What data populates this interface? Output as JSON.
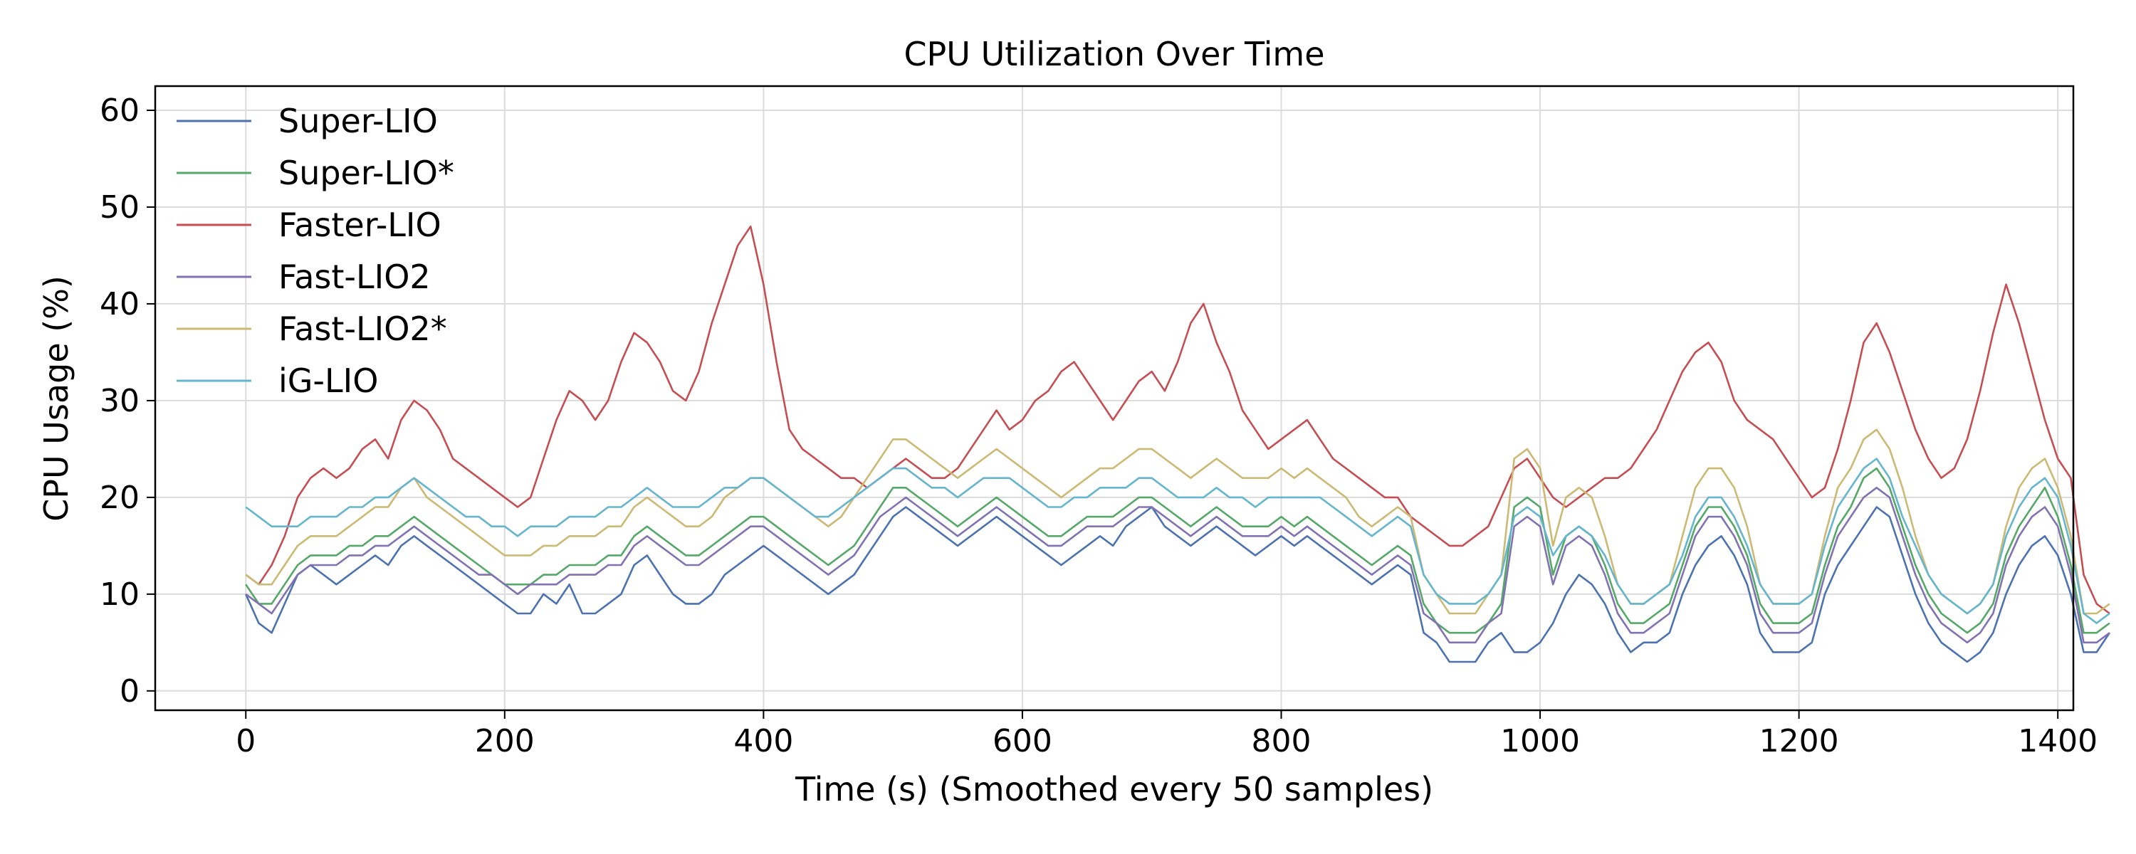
{
  "chart_data": {
    "type": "line",
    "title": "CPU Utilization Over Time",
    "xlabel": "Time (s) (Smoothed every 50 samples)",
    "ylabel": "CPU Usage (%)",
    "xlim": [
      -70,
      1412
    ],
    "ylim": [
      -2,
      62.5
    ],
    "xticks": [
      0,
      200,
      400,
      600,
      800,
      1000,
      1200,
      1400
    ],
    "yticks": [
      0,
      10,
      20,
      30,
      40,
      50,
      60
    ],
    "grid": true,
    "legend_position": "top-left",
    "x_step": 10,
    "series": [
      {
        "name": "Super-LIO",
        "color": "#4c72b0",
        "values": [
          10,
          7,
          6,
          9,
          12,
          13,
          12,
          11,
          12,
          13,
          14,
          13,
          15,
          16,
          15,
          14,
          13,
          12,
          11,
          10,
          9,
          8,
          8,
          10,
          9,
          11,
          8,
          8,
          9,
          10,
          13,
          14,
          12,
          10,
          9,
          9,
          10,
          12,
          13,
          14,
          15,
          14,
          13,
          12,
          11,
          10,
          11,
          12,
          14,
          16,
          18,
          19,
          18,
          17,
          16,
          15,
          16,
          17,
          18,
          17,
          16,
          15,
          14,
          13,
          14,
          15,
          16,
          15,
          17,
          18,
          19,
          17,
          16,
          15,
          16,
          17,
          16,
          15,
          14,
          15,
          16,
          15,
          16,
          15,
          14,
          13,
          12,
          11,
          12,
          13,
          12,
          6,
          5,
          3,
          3,
          3,
          5,
          6,
          4,
          4,
          5,
          7,
          10,
          12,
          11,
          9,
          6,
          4,
          5,
          5,
          6,
          10,
          13,
          15,
          16,
          14,
          11,
          6,
          4,
          4,
          4,
          5,
          10,
          13,
          15,
          17,
          19,
          18,
          14,
          10,
          7,
          5,
          4,
          3,
          4,
          6,
          10,
          13,
          15,
          16,
          14,
          10,
          4,
          4,
          6
        ]
      },
      {
        "name": "Super-LIO*",
        "color": "#55a868",
        "values": [
          11,
          9,
          9,
          11,
          13,
          14,
          14,
          14,
          15,
          15,
          16,
          16,
          17,
          18,
          17,
          16,
          15,
          14,
          13,
          12,
          11,
          11,
          11,
          12,
          12,
          13,
          13,
          13,
          14,
          14,
          16,
          17,
          16,
          15,
          14,
          14,
          15,
          16,
          17,
          18,
          18,
          17,
          16,
          15,
          14,
          13,
          14,
          15,
          17,
          19,
          21,
          21,
          20,
          19,
          18,
          17,
          18,
          19,
          20,
          19,
          18,
          17,
          16,
          16,
          17,
          18,
          18,
          18,
          19,
          20,
          20,
          19,
          18,
          17,
          18,
          19,
          18,
          17,
          17,
          17,
          18,
          17,
          18,
          17,
          16,
          15,
          14,
          13,
          14,
          15,
          14,
          9,
          7,
          6,
          6,
          6,
          7,
          9,
          19,
          20,
          19,
          12,
          16,
          17,
          16,
          13,
          9,
          7,
          7,
          8,
          9,
          13,
          17,
          19,
          19,
          17,
          14,
          9,
          7,
          7,
          7,
          8,
          13,
          17,
          19,
          22,
          23,
          21,
          17,
          13,
          10,
          8,
          7,
          6,
          7,
          9,
          14,
          17,
          19,
          21,
          18,
          13,
          6,
          6,
          7
        ]
      },
      {
        "name": "Faster-LIO",
        "color": "#c44e52",
        "values": [
          12,
          11,
          13,
          16,
          20,
          22,
          23,
          22,
          23,
          25,
          26,
          24,
          28,
          30,
          29,
          27,
          24,
          23,
          22,
          21,
          20,
          19,
          20,
          24,
          28,
          31,
          30,
          28,
          30,
          34,
          37,
          36,
          34,
          31,
          30,
          33,
          38,
          42,
          46,
          48,
          42,
          34,
          27,
          25,
          24,
          23,
          22,
          22,
          21,
          22,
          23,
          24,
          23,
          22,
          22,
          23,
          25,
          27,
          29,
          27,
          28,
          30,
          31,
          33,
          34,
          32,
          30,
          28,
          30,
          32,
          33,
          31,
          34,
          38,
          40,
          36,
          33,
          29,
          27,
          25,
          26,
          27,
          28,
          26,
          24,
          23,
          22,
          21,
          20,
          20,
          18,
          17,
          16,
          15,
          15,
          16,
          17,
          20,
          23,
          24,
          22,
          20,
          19,
          20,
          21,
          22,
          22,
          23,
          25,
          27,
          30,
          33,
          35,
          36,
          34,
          30,
          28,
          27,
          26,
          24,
          22,
          20,
          21,
          25,
          30,
          36,
          38,
          35,
          31,
          27,
          24,
          22,
          23,
          26,
          31,
          37,
          42,
          38,
          33,
          28,
          24,
          22,
          12,
          9,
          8
        ]
      },
      {
        "name": "Fast-LIO2",
        "color": "#8172b2",
        "values": [
          10,
          9,
          8,
          10,
          12,
          13,
          13,
          13,
          14,
          14,
          15,
          15,
          16,
          17,
          16,
          15,
          14,
          13,
          12,
          12,
          11,
          10,
          11,
          11,
          11,
          12,
          12,
          12,
          13,
          13,
          15,
          16,
          15,
          14,
          13,
          13,
          14,
          15,
          16,
          17,
          17,
          16,
          15,
          14,
          13,
          12,
          13,
          14,
          16,
          18,
          19,
          20,
          19,
          18,
          17,
          16,
          17,
          18,
          19,
          18,
          17,
          16,
          15,
          15,
          16,
          17,
          17,
          17,
          18,
          19,
          19,
          18,
          17,
          16,
          17,
          18,
          17,
          16,
          16,
          16,
          17,
          16,
          17,
          16,
          15,
          14,
          13,
          12,
          13,
          14,
          13,
          8,
          7,
          5,
          5,
          5,
          7,
          8,
          17,
          18,
          17,
          11,
          15,
          16,
          15,
          12,
          8,
          6,
          6,
          7,
          8,
          12,
          16,
          18,
          18,
          16,
          13,
          8,
          6,
          6,
          6,
          7,
          12,
          16,
          18,
          20,
          21,
          20,
          16,
          12,
          9,
          7,
          6,
          5,
          6,
          8,
          13,
          16,
          18,
          19,
          17,
          12,
          5,
          5,
          6
        ]
      },
      {
        "name": "Fast-LIO2*",
        "color": "#ccb974",
        "values": [
          12,
          11,
          11,
          13,
          15,
          16,
          16,
          16,
          17,
          18,
          19,
          19,
          21,
          22,
          20,
          19,
          18,
          17,
          16,
          15,
          14,
          14,
          14,
          15,
          15,
          16,
          16,
          16,
          17,
          17,
          19,
          20,
          19,
          18,
          17,
          17,
          18,
          20,
          21,
          22,
          22,
          21,
          20,
          19,
          18,
          17,
          18,
          20,
          22,
          24,
          26,
          26,
          25,
          24,
          23,
          22,
          23,
          24,
          25,
          24,
          23,
          22,
          21,
          20,
          21,
          22,
          23,
          23,
          24,
          25,
          25,
          24,
          23,
          22,
          23,
          24,
          23,
          22,
          22,
          22,
          23,
          22,
          23,
          22,
          21,
          20,
          18,
          17,
          18,
          19,
          18,
          12,
          10,
          8,
          8,
          8,
          10,
          12,
          24,
          25,
          23,
          15,
          20,
          21,
          20,
          16,
          11,
          9,
          9,
          10,
          11,
          16,
          21,
          23,
          23,
          21,
          17,
          11,
          9,
          9,
          9,
          10,
          16,
          21,
          23,
          26,
          27,
          25,
          21,
          16,
          12,
          10,
          9,
          8,
          9,
          11,
          17,
          21,
          23,
          24,
          21,
          16,
          8,
          8,
          9
        ]
      },
      {
        "name": "iG-LIO",
        "color": "#64b5cd",
        "values": [
          19,
          18,
          17,
          17,
          17,
          18,
          18,
          18,
          19,
          19,
          20,
          20,
          21,
          22,
          21,
          20,
          19,
          18,
          18,
          17,
          17,
          16,
          17,
          17,
          17,
          18,
          18,
          18,
          19,
          19,
          20,
          21,
          20,
          19,
          19,
          19,
          20,
          21,
          21,
          22,
          22,
          21,
          20,
          19,
          18,
          18,
          19,
          20,
          21,
          22,
          23,
          23,
          22,
          21,
          21,
          20,
          21,
          22,
          22,
          22,
          21,
          20,
          19,
          19,
          20,
          20,
          21,
          21,
          21,
          22,
          22,
          21,
          20,
          20,
          20,
          21,
          20,
          20,
          19,
          20,
          20,
          20,
          20,
          20,
          19,
          18,
          17,
          16,
          17,
          18,
          17,
          12,
          10,
          9,
          9,
          9,
          10,
          12,
          18,
          19,
          18,
          14,
          16,
          17,
          16,
          14,
          11,
          9,
          9,
          10,
          11,
          14,
          18,
          20,
          20,
          18,
          15,
          11,
          9,
          9,
          9,
          10,
          15,
          19,
          21,
          23,
          24,
          22,
          18,
          15,
          12,
          10,
          9,
          8,
          9,
          11,
          16,
          19,
          21,
          22,
          20,
          15,
          8,
          7,
          8
        ]
      }
    ]
  }
}
